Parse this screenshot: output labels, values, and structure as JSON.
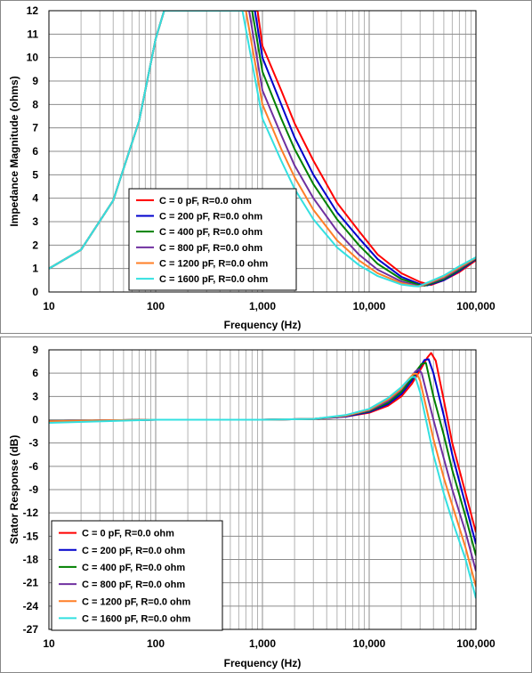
{
  "chart_data": [
    {
      "type": "line",
      "xscale": "log",
      "xlabel": "Frequency (Hz)",
      "ylabel": "Impedance Magnitude (ohms)",
      "xlim": [
        10,
        100000
      ],
      "ylim": [
        0,
        12
      ],
      "xticks": [
        10,
        100,
        1000,
        10000,
        100000
      ],
      "xtick_labels": [
        "10",
        "100",
        "1,000",
        "10,000",
        "100,000"
      ],
      "yticks": [
        0,
        1,
        2,
        3,
        4,
        5,
        6,
        7,
        8,
        9,
        10,
        11,
        12
      ],
      "ytick_labels": [
        "0",
        "1",
        "2",
        "3",
        "4",
        "5",
        "6",
        "7",
        "8",
        "9",
        "10",
        "11",
        "12"
      ],
      "grid": true,
      "legend_position": "lower-left",
      "series": [
        {
          "name": "C = 0 pF,  R=0.0 ohm",
          "color": "#ff0000",
          "x": [
            10,
            20,
            40,
            70,
            100,
            120,
            900,
            1000,
            1500,
            2000,
            3000,
            5000,
            8000,
            12000,
            20000,
            30000,
            38000,
            50000,
            70000,
            100000
          ],
          "y": [
            1.0,
            1.8,
            3.9,
            7.3,
            10.8,
            12.0,
            12.0,
            10.5,
            8.6,
            7.2,
            5.6,
            3.8,
            2.6,
            1.6,
            0.8,
            0.42,
            0.3,
            0.5,
            0.85,
            1.35
          ]
        },
        {
          "name": "C = 200 pF,  R=0.0 ohm",
          "color": "#0000cc",
          "x": [
            10,
            20,
            40,
            70,
            100,
            120,
            850,
            1000,
            1500,
            2000,
            3000,
            5000,
            8000,
            12000,
            20000,
            30000,
            35000,
            50000,
            70000,
            100000
          ],
          "y": [
            1.0,
            1.8,
            3.9,
            7.3,
            10.8,
            12.0,
            12.0,
            10.0,
            8.0,
            6.6,
            5.0,
            3.4,
            2.3,
            1.4,
            0.65,
            0.33,
            0.28,
            0.5,
            0.9,
            1.4
          ]
        },
        {
          "name": "C = 400 pF,  R=0.0 ohm",
          "color": "#008000",
          "x": [
            10,
            20,
            40,
            70,
            100,
            120,
            800,
            1000,
            1500,
            2000,
            3000,
            5000,
            8000,
            12000,
            20000,
            30000,
            33000,
            50000,
            70000,
            100000
          ],
          "y": [
            1.0,
            1.8,
            3.9,
            7.3,
            10.8,
            12.0,
            12.0,
            9.4,
            7.4,
            6.1,
            4.6,
            3.1,
            2.0,
            1.2,
            0.55,
            0.29,
            0.27,
            0.55,
            0.95,
            1.42
          ]
        },
        {
          "name": "C = 800 pF,  R=0.0 ohm",
          "color": "#7030a0",
          "x": [
            10,
            20,
            40,
            70,
            100,
            120,
            750,
            1000,
            1500,
            2000,
            3000,
            5000,
            8000,
            12000,
            20000,
            28000,
            31000,
            50000,
            70000,
            100000
          ],
          "y": [
            1.0,
            1.8,
            3.9,
            7.3,
            10.8,
            12.0,
            12.0,
            8.6,
            6.7,
            5.4,
            4.0,
            2.6,
            1.6,
            0.95,
            0.45,
            0.27,
            0.26,
            0.6,
            1.0,
            1.44
          ]
        },
        {
          "name": "C = 1200 pF,  R=0.0 ohm",
          "color": "#ff7f27",
          "x": [
            10,
            20,
            40,
            70,
            100,
            120,
            700,
            1000,
            1500,
            2000,
            3000,
            5000,
            8000,
            12000,
            20000,
            27000,
            30000,
            50000,
            70000,
            100000
          ],
          "y": [
            1.0,
            1.8,
            3.9,
            7.3,
            10.8,
            12.0,
            12.0,
            8.0,
            6.1,
            4.9,
            3.5,
            2.2,
            1.35,
            0.8,
            0.38,
            0.26,
            0.25,
            0.65,
            1.05,
            1.46
          ]
        },
        {
          "name": "C = 1600 pF,  R=0.0 ohm",
          "color": "#33e0e0",
          "x": [
            10,
            20,
            40,
            70,
            100,
            120,
            650,
            1000,
            1500,
            2000,
            3000,
            5000,
            8000,
            12000,
            20000,
            26000,
            29000,
            50000,
            70000,
            100000
          ],
          "y": [
            1.0,
            1.8,
            3.9,
            7.3,
            10.8,
            12.0,
            12.0,
            7.4,
            5.6,
            4.4,
            3.1,
            1.9,
            1.15,
            0.68,
            0.32,
            0.25,
            0.24,
            0.7,
            1.1,
            1.48
          ]
        }
      ]
    },
    {
      "type": "line",
      "xscale": "log",
      "xlabel": "Frequency (Hz)",
      "ylabel": "Stator Response (dB)",
      "xlim": [
        10,
        100000
      ],
      "ylim": [
        -27,
        9
      ],
      "xticks": [
        10,
        100,
        1000,
        10000,
        100000
      ],
      "xtick_labels": [
        "10",
        "100",
        "1,000",
        "10,000",
        "100,000"
      ],
      "yticks": [
        -27,
        -24,
        -21,
        -18,
        -15,
        -12,
        -9,
        -6,
        -3,
        0,
        3,
        6,
        9
      ],
      "ytick_labels": [
        "-27",
        "-24",
        "-21",
        "-18",
        "-15",
        "-12",
        "-9",
        "-6",
        "-3",
        "0",
        "3",
        "6",
        "9"
      ],
      "grid": true,
      "legend_position": "lower-left",
      "series": [
        {
          "name": "C = 0 pF,  R=0.0 ohm",
          "color": "#ff0000",
          "x": [
            10,
            100,
            1000,
            3000,
            6000,
            10000,
            15000,
            20000,
            25000,
            30000,
            35000,
            38000,
            42000,
            50000,
            60000,
            80000,
            100000
          ],
          "y": [
            -0.2,
            0,
            0,
            0.1,
            0.4,
            0.9,
            1.8,
            3.0,
            4.6,
            6.4,
            8.0,
            8.6,
            7.6,
            2.5,
            -3.0,
            -9.5,
            -14.5
          ]
        },
        {
          "name": "C = 200 pF,  R=0.0 ohm",
          "color": "#0000cc",
          "x": [
            10,
            100,
            1000,
            3000,
            6000,
            10000,
            15000,
            20000,
            25000,
            30000,
            33000,
            36000,
            40000,
            50000,
            60000,
            80000,
            100000
          ],
          "y": [
            -0.2,
            0,
            0,
            0.1,
            0.4,
            1.0,
            2.0,
            3.3,
            5.0,
            6.8,
            7.7,
            7.8,
            6.0,
            0.5,
            -4.5,
            -11.0,
            -16.0
          ]
        },
        {
          "name": "C = 400 pF,  R=0.0 ohm",
          "color": "#008000",
          "x": [
            10,
            100,
            1000,
            3000,
            6000,
            10000,
            15000,
            20000,
            25000,
            28000,
            31000,
            34000,
            40000,
            50000,
            60000,
            80000,
            100000
          ],
          "y": [
            -0.2,
            0,
            0,
            0.1,
            0.5,
            1.1,
            2.2,
            3.6,
            5.3,
            6.4,
            7.2,
            7.3,
            3.0,
            -2.0,
            -6.5,
            -12.5,
            -17.5
          ]
        },
        {
          "name": "C = 800 pF,  R=0.0 ohm",
          "color": "#7030a0",
          "x": [
            10,
            100,
            1000,
            3000,
            6000,
            10000,
            15000,
            20000,
            24000,
            27000,
            29000,
            31000,
            40000,
            50000,
            60000,
            80000,
            100000
          ],
          "y": [
            -0.2,
            0,
            0,
            0.1,
            0.5,
            1.2,
            2.4,
            3.9,
            5.3,
            6.2,
            6.5,
            6.0,
            0.0,
            -5.0,
            -9.0,
            -14.5,
            -19.5
          ]
        },
        {
          "name": "C = 1200 pF,  R=0.0 ohm",
          "color": "#ff7f27",
          "x": [
            10,
            100,
            1000,
            3000,
            6000,
            10000,
            15000,
            20000,
            23000,
            26000,
            28000,
            30000,
            40000,
            50000,
            60000,
            80000,
            100000
          ],
          "y": [
            -0.2,
            0,
            0,
            0.1,
            0.5,
            1.3,
            2.6,
            4.0,
            5.1,
            5.9,
            5.9,
            5.0,
            -2.5,
            -7.5,
            -11.0,
            -16.5,
            -21.5
          ]
        },
        {
          "name": "C = 1600 pF,  R=0.0 ohm",
          "color": "#33e0e0",
          "x": [
            10,
            100,
            1000,
            3000,
            6000,
            10000,
            15000,
            20000,
            22000,
            25000,
            27000,
            30000,
            40000,
            50000,
            60000,
            80000,
            100000
          ],
          "y": [
            -0.4,
            0,
            0,
            0.1,
            0.6,
            1.4,
            2.8,
            4.2,
            4.8,
            5.5,
            5.5,
            3.5,
            -4.5,
            -9.5,
            -13.0,
            -18.0,
            -23.0
          ]
        }
      ]
    }
  ]
}
